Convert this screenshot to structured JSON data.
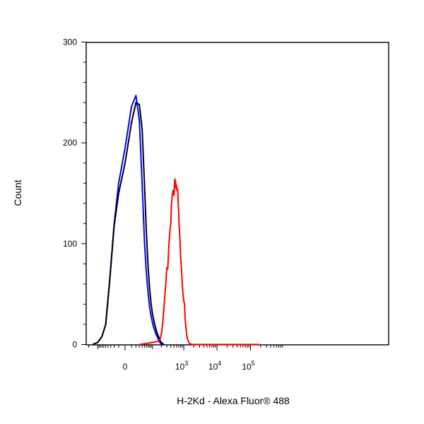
{
  "chart_data": {
    "type": "line",
    "title": "",
    "xlabel": "H-2Kd - Alexa Fluor® 488",
    "ylabel": "Count",
    "xscale": "biexponential",
    "xlim": [
      -300,
      200000
    ],
    "ylim": [
      0,
      300
    ],
    "y_ticks": [
      {
        "value": 0,
        "label": "0"
      },
      {
        "value": 100,
        "label": "100"
      },
      {
        "value": 200,
        "label": "200"
      },
      {
        "value": 300,
        "label": "300"
      }
    ],
    "x_ticks": [
      {
        "value": 0,
        "base": "0",
        "exp": ""
      },
      {
        "value": 1000,
        "base": "10",
        "exp": "3"
      },
      {
        "value": 10000,
        "base": "10",
        "exp": "4"
      },
      {
        "value": 100000,
        "base": "10",
        "exp": "5"
      }
    ],
    "grid": false,
    "legend": "none",
    "series": [
      {
        "color": "#0000ff",
        "x": [
          -150,
          -100,
          -70,
          -50,
          -35,
          -20,
          -10,
          0,
          10,
          20,
          30,
          40,
          50,
          60,
          70,
          80,
          90,
          100,
          110,
          120,
          130,
          140,
          150,
          160,
          170,
          180,
          190,
          200,
          220
        ],
        "y": [
          0,
          2,
          8,
          20,
          60,
          120,
          160,
          195,
          236,
          247,
          222,
          160,
          103,
          70,
          50,
          36,
          28,
          22,
          17,
          14,
          11,
          9,
          7,
          5,
          3,
          2,
          1,
          0.5,
          0
        ]
      },
      {
        "color": "#000000",
        "x": [
          -150,
          -100,
          -70,
          -50,
          -35,
          -20,
          -10,
          0,
          10,
          20,
          30,
          40,
          50,
          60,
          70,
          80,
          90,
          100,
          110,
          120,
          130,
          140,
          150,
          160,
          170,
          180,
          190,
          200,
          220,
          240
        ],
        "y": [
          0,
          2,
          8,
          20,
          60,
          118,
          150,
          180,
          220,
          240,
          238,
          214,
          160,
          110,
          76,
          54,
          40,
          31,
          25,
          20,
          16,
          13,
          10,
          8,
          6,
          4,
          3,
          2,
          1,
          0
        ]
      },
      {
        "color": "#ff0000",
        "x": [
          30,
          60,
          100,
          150,
          180,
          200,
          220,
          250,
          280,
          300,
          320,
          350,
          380,
          400,
          420,
          450,
          470,
          500,
          530,
          560,
          580,
          600,
          620,
          650,
          680,
          700,
          720,
          750,
          800,
          850,
          900,
          950,
          1000,
          1050,
          1100,
          1200,
          1300,
          1500,
          1800,
          2000,
          3000,
          5000,
          10000,
          100000,
          200000
        ],
        "y": [
          0,
          1,
          2,
          3,
          5,
          10,
          20,
          42,
          62,
          76,
          75,
          100,
          115,
          120,
          140,
          150,
          153,
          148,
          164,
          162,
          155,
          158,
          153,
          154,
          138,
          130,
          120,
          110,
          87,
          75,
          60,
          50,
          43,
          40,
          25,
          12,
          5,
          1,
          0,
          0,
          0,
          0,
          0,
          0,
          0
        ]
      }
    ]
  }
}
